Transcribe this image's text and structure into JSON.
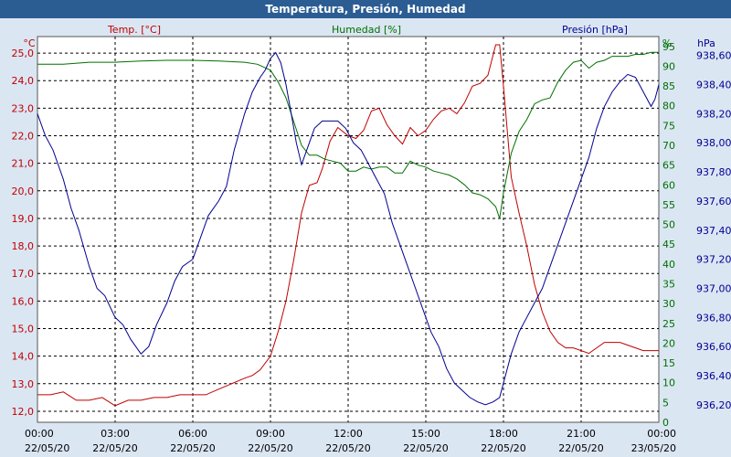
{
  "window": {
    "title": "Temperatura, Presión, Humedad"
  },
  "colors": {
    "temp": "#c00000",
    "humidity": "#007000",
    "pressure": "#000090",
    "background": "#dbe6f3",
    "plot": "#ffffff",
    "titlebar": "#2b5d93"
  },
  "chart_data": {
    "type": "line",
    "title": "Temperatura, Presión, Humedad",
    "grid": true,
    "x_ticks": [
      {
        "time": "00:00",
        "date": "22/05/20"
      },
      {
        "time": "03:00",
        "date": "22/05/20"
      },
      {
        "time": "06:00",
        "date": "22/05/20"
      },
      {
        "time": "09:00",
        "date": "22/05/20"
      },
      {
        "time": "12:00",
        "date": "22/05/20"
      },
      {
        "time": "15:00",
        "date": "22/05/20"
      },
      {
        "time": "18:00",
        "date": "22/05/20"
      },
      {
        "time": "21:00",
        "date": "22/05/20"
      },
      {
        "time": "00:00",
        "date": "23/05/20"
      }
    ],
    "axes": {
      "temp": {
        "unit": "°C",
        "min": 11.6,
        "max": 25.6,
        "ticks": [
          "12,0",
          "13,0",
          "14,0",
          "15,0",
          "16,0",
          "17,0",
          "18,0",
          "19,0",
          "20,0",
          "21,0",
          "22,0",
          "23,0",
          "24,0",
          "25,0"
        ]
      },
      "humidity": {
        "unit": "%",
        "min": 0,
        "max": 97.5,
        "ticks": [
          "0",
          "5",
          "10",
          "15",
          "20",
          "25",
          "30",
          "35",
          "40",
          "45",
          "50",
          "55",
          "60",
          "65",
          "70",
          "75",
          "80",
          "85",
          "90",
          "95"
        ]
      },
      "pressure": {
        "unit": "hPa",
        "min": 936.08,
        "max": 938.73,
        "ticks": [
          "936,20",
          "936,40",
          "936,60",
          "936,80",
          "937,00",
          "937,20",
          "937,40",
          "937,60",
          "937,80",
          "938,00",
          "938,20",
          "938,40",
          "938,60"
        ]
      }
    },
    "series": [
      {
        "name": "Temp. [°C]",
        "axis": "temp",
        "x": [
          0,
          0.5,
          1,
          1.5,
          2,
          2.5,
          3,
          3.5,
          4,
          4.5,
          5,
          5.5,
          6,
          6.5,
          7,
          7.5,
          8,
          8.3,
          8.6,
          9,
          9.3,
          9.6,
          9.9,
          10.2,
          10.5,
          10.8,
          11,
          11.3,
          11.6,
          12,
          12.3,
          12.6,
          12.9,
          13.2,
          13.5,
          13.8,
          14.1,
          14.4,
          14.7,
          15,
          15.3,
          15.6,
          15.9,
          16.2,
          16.5,
          16.8,
          17.1,
          17.4,
          17.7,
          17.85,
          18,
          18.3,
          18.6,
          18.9,
          19.2,
          19.5,
          19.8,
          20.1,
          20.4,
          20.7,
          21,
          21.3,
          21.6,
          21.9,
          22.2,
          22.5,
          22.8,
          23.1,
          23.4,
          23.7,
          24
        ],
        "values": [
          12.6,
          12.6,
          12.7,
          12.4,
          12.4,
          12.5,
          12.2,
          12.4,
          12.4,
          12.5,
          12.5,
          12.6,
          12.6,
          12.6,
          12.8,
          13.0,
          13.2,
          13.3,
          13.5,
          14.0,
          14.9,
          16.0,
          17.5,
          19.2,
          20.2,
          20.3,
          20.8,
          21.8,
          22.3,
          22.0,
          21.9,
          22.2,
          22.9,
          23.0,
          22.4,
          22.0,
          21.7,
          22.3,
          22.0,
          22.2,
          22.6,
          22.9,
          23.0,
          22.8,
          23.2,
          23.8,
          23.9,
          24.2,
          25.3,
          25.3,
          23.8,
          20.5,
          19.2,
          18.0,
          16.6,
          15.6,
          14.9,
          14.5,
          14.3,
          14.3,
          14.2,
          14.1,
          14.3,
          14.5,
          14.5,
          14.5,
          14.4,
          14.3,
          14.2,
          14.2,
          14.2
        ]
      },
      {
        "name": "Humedad [%]",
        "axis": "humidity",
        "x": [
          0,
          1,
          2,
          3,
          4,
          5,
          6,
          7,
          8,
          8.5,
          9,
          9.3,
          9.6,
          9.9,
          10.2,
          10.5,
          10.8,
          11.1,
          11.4,
          11.7,
          12,
          12.3,
          12.6,
          12.9,
          13.2,
          13.5,
          13.8,
          14.1,
          14.4,
          14.7,
          15,
          15.3,
          15.6,
          15.9,
          16.2,
          16.5,
          16.8,
          17.1,
          17.4,
          17.7,
          17.85,
          18,
          18.3,
          18.6,
          18.9,
          19.2,
          19.5,
          19.8,
          20.1,
          20.4,
          20.7,
          21,
          21.3,
          21.6,
          21.9,
          22.2,
          22.5,
          22.8,
          23.1,
          23.4,
          23.7,
          24
        ],
        "values": [
          90.5,
          90.5,
          91.0,
          91.0,
          91.3,
          91.5,
          91.5,
          91.3,
          91.0,
          90.5,
          89.0,
          86.0,
          82.0,
          76.0,
          70.0,
          67.5,
          67.5,
          66.5,
          66.0,
          65.5,
          63.5,
          63.5,
          64.5,
          64.0,
          64.5,
          64.5,
          63.0,
          63.0,
          66.0,
          65.0,
          64.5,
          63.5,
          63.0,
          62.5,
          61.5,
          60.0,
          58.0,
          57.5,
          56.5,
          54.5,
          51.5,
          58.0,
          68.0,
          73.5,
          76.5,
          80.5,
          81.5,
          82.0,
          86.0,
          89.0,
          91.0,
          91.5,
          89.5,
          91.0,
          91.5,
          92.5,
          92.5,
          92.5,
          93.0,
          93.0,
          93.5,
          93.5
        ]
      },
      {
        "name": "Presión [hPa]",
        "axis": "pressure",
        "x": [
          0,
          0.3,
          0.6,
          1,
          1.3,
          1.6,
          2,
          2.3,
          2.6,
          3,
          3.3,
          3.6,
          4,
          4.3,
          4.6,
          5,
          5.3,
          5.6,
          6,
          6.3,
          6.6,
          7,
          7.3,
          7.6,
          8,
          8.3,
          8.6,
          8.8,
          9,
          9.2,
          9.4,
          9.6,
          9.8,
          10,
          10.2,
          10.4,
          10.7,
          11,
          11.3,
          11.6,
          11.9,
          12.2,
          12.5,
          12.8,
          13.1,
          13.4,
          13.7,
          14,
          14.3,
          14.6,
          14.9,
          15.2,
          15.5,
          15.8,
          16.1,
          16.4,
          16.7,
          17,
          17.3,
          17.6,
          17.85,
          18,
          18.3,
          18.6,
          18.9,
          19.2,
          19.5,
          19.8,
          20.1,
          20.4,
          20.7,
          21,
          21.3,
          21.6,
          21.9,
          22.2,
          22.5,
          22.8,
          23.1,
          23.4,
          23.7,
          23.85,
          24
        ],
        "values": [
          938.2,
          938.05,
          937.95,
          937.75,
          937.55,
          937.4,
          937.15,
          937.0,
          936.95,
          936.8,
          936.75,
          936.65,
          936.55,
          936.6,
          936.75,
          936.9,
          937.05,
          937.15,
          937.2,
          937.35,
          937.5,
          937.6,
          937.7,
          937.95,
          938.2,
          938.35,
          938.45,
          938.5,
          938.58,
          938.62,
          938.55,
          938.4,
          938.2,
          938.0,
          937.85,
          937.95,
          938.1,
          938.15,
          938.15,
          938.15,
          938.1,
          938.0,
          937.95,
          937.85,
          937.75,
          937.65,
          937.45,
          937.3,
          937.15,
          937.0,
          936.85,
          936.7,
          936.6,
          936.45,
          936.35,
          936.3,
          936.25,
          936.22,
          936.2,
          936.22,
          936.25,
          936.35,
          936.55,
          936.7,
          936.8,
          936.9,
          937.0,
          937.15,
          937.3,
          937.45,
          937.6,
          937.75,
          937.9,
          938.1,
          938.25,
          938.35,
          938.42,
          938.47,
          938.45,
          938.35,
          938.25,
          938.3,
          938.4
        ]
      }
    ]
  }
}
